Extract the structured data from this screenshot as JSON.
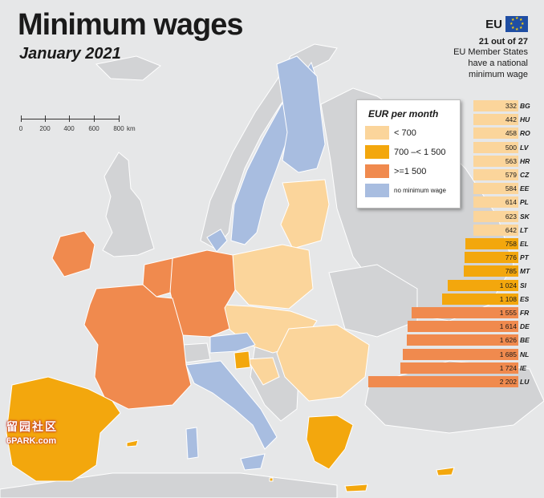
{
  "title": "Minimum wages",
  "subtitle": "January 2021",
  "scale": {
    "ticks": [
      "0",
      "200",
      "400",
      "600",
      "800"
    ],
    "unit": "km"
  },
  "eu_box": {
    "label": "EU",
    "count": "21 out of 27",
    "desc_lines": [
      "EU Member States",
      "have a national",
      "minimum wage"
    ]
  },
  "legend": {
    "title": "EUR per month",
    "items": [
      {
        "label": "< 700",
        "color": "#fbd59b"
      },
      {
        "label": "700 –< 1 500",
        "color": "#f3a70d"
      },
      {
        "label": ">=1 500",
        "color": "#f08a4e"
      },
      {
        "label": "no minimum wage",
        "color": "#a8bde0"
      }
    ]
  },
  "colors": {
    "sea": "#e6e7e8",
    "non_eu": "#d2d3d5",
    "border": "#ffffff"
  },
  "chart_data": {
    "type": "bar",
    "orientation": "horizontal",
    "unit": "EUR per month",
    "categories": [
      "BG",
      "HU",
      "RO",
      "LV",
      "HR",
      "CZ",
      "EE",
      "PL",
      "SK",
      "LT",
      "EL",
      "PT",
      "MT",
      "SI",
      "ES",
      "FR",
      "DE",
      "BE",
      "NL",
      "IE",
      "LU"
    ],
    "values": [
      332,
      442,
      458,
      500,
      563,
      579,
      584,
      614,
      623,
      642,
      758,
      776,
      785,
      1024,
      1108,
      1555,
      1614,
      1626,
      1685,
      1724,
      2202
    ],
    "value_labels": [
      "332",
      "442",
      "458",
      "500",
      "563",
      "579",
      "584",
      "614",
      "623",
      "642",
      "758",
      "776",
      "785",
      "1 024",
      "1 108",
      "1 555",
      "1 614",
      "1 626",
      "1 685",
      "1 724",
      "2 202"
    ],
    "thresholds": [
      700,
      1500
    ],
    "band_colors": [
      "#fbd59b",
      "#f3a70d",
      "#f08a4e"
    ]
  },
  "watermark": {
    "cn": "留园社区",
    "en": "6PARK.com"
  }
}
